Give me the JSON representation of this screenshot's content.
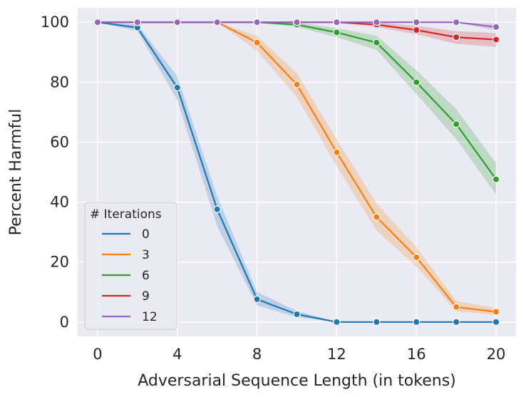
{
  "chart_data": {
    "type": "line",
    "title": "",
    "xlabel": "Adversarial Sequence Length (in tokens)",
    "ylabel": "Percent Harmful",
    "xlim": [
      -1,
      21
    ],
    "ylim": [
      -4.8,
      104.8
    ],
    "xticks": [
      0,
      4,
      8,
      12,
      16,
      20
    ],
    "xtick_labels": [
      "0",
      "4",
      "8",
      "12",
      "16",
      "20"
    ],
    "yticks": [
      0,
      20,
      40,
      60,
      80,
      100
    ],
    "ytick_labels": [
      "0",
      "20",
      "40",
      "60",
      "80",
      "100"
    ],
    "grid": true,
    "legend_title": "# Iterations",
    "legend_position": "lower-left",
    "x": [
      0,
      2,
      4,
      6,
      8,
      10,
      12,
      14,
      16,
      18,
      20
    ],
    "series": [
      {
        "name": "0",
        "color": "#1f77b4",
        "values": [
          100,
          98.2,
          78.2,
          37.6,
          7.6,
          2.6,
          0,
          0,
          0,
          0,
          0
        ],
        "lower": [
          100,
          97.0,
          74.0,
          32.0,
          5.5,
          1.6,
          0,
          0,
          0,
          0,
          0
        ],
        "upper": [
          100,
          99.2,
          82.0,
          42.0,
          10.0,
          3.7,
          0,
          0,
          0,
          0,
          0
        ]
      },
      {
        "name": "3",
        "color": "#ff7f0e",
        "values": [
          100,
          100,
          100,
          100,
          93.2,
          79.2,
          56.6,
          35.0,
          21.6,
          5.0,
          3.4
        ],
        "lower": [
          100,
          100,
          100,
          100,
          90.5,
          75.0,
          52.0,
          30.5,
          18.5,
          3.6,
          2.3
        ],
        "upper": [
          100,
          100,
          100,
          100,
          95.5,
          83.0,
          61.0,
          39.5,
          25.0,
          7.0,
          4.6
        ]
      },
      {
        "name": "6",
        "color": "#2ca02c",
        "values": [
          100,
          100,
          100,
          100,
          100,
          99.2,
          96.6,
          93.2,
          80.0,
          66.0,
          47.6
        ],
        "lower": [
          100,
          100,
          100,
          100,
          100,
          98.4,
          95.0,
          90.8,
          76.0,
          61.0,
          42.5
        ],
        "upper": [
          100,
          100,
          100,
          100,
          100,
          100,
          98.0,
          95.5,
          84.0,
          71.0,
          53.0
        ]
      },
      {
        "name": "9",
        "color": "#d62728",
        "values": [
          100,
          100,
          100,
          100,
          100,
          100,
          100,
          99.2,
          97.4,
          95.0,
          94.2
        ],
        "lower": [
          100,
          100,
          100,
          100,
          100,
          100,
          100,
          98.4,
          96.0,
          92.8,
          91.8
        ],
        "upper": [
          100,
          100,
          100,
          100,
          100,
          100,
          100,
          100,
          98.8,
          97.0,
          96.4
        ]
      },
      {
        "name": "12",
        "color": "#9467bd",
        "values": [
          100,
          100,
          100,
          100,
          100,
          100,
          100,
          100,
          100,
          100,
          98.4
        ],
        "lower": [
          100,
          100,
          100,
          100,
          100,
          100,
          100,
          100,
          100,
          100,
          97.2
        ],
        "upper": [
          100,
          100,
          100,
          100,
          100,
          100,
          100,
          100,
          100,
          100,
          99.6
        ]
      }
    ]
  }
}
